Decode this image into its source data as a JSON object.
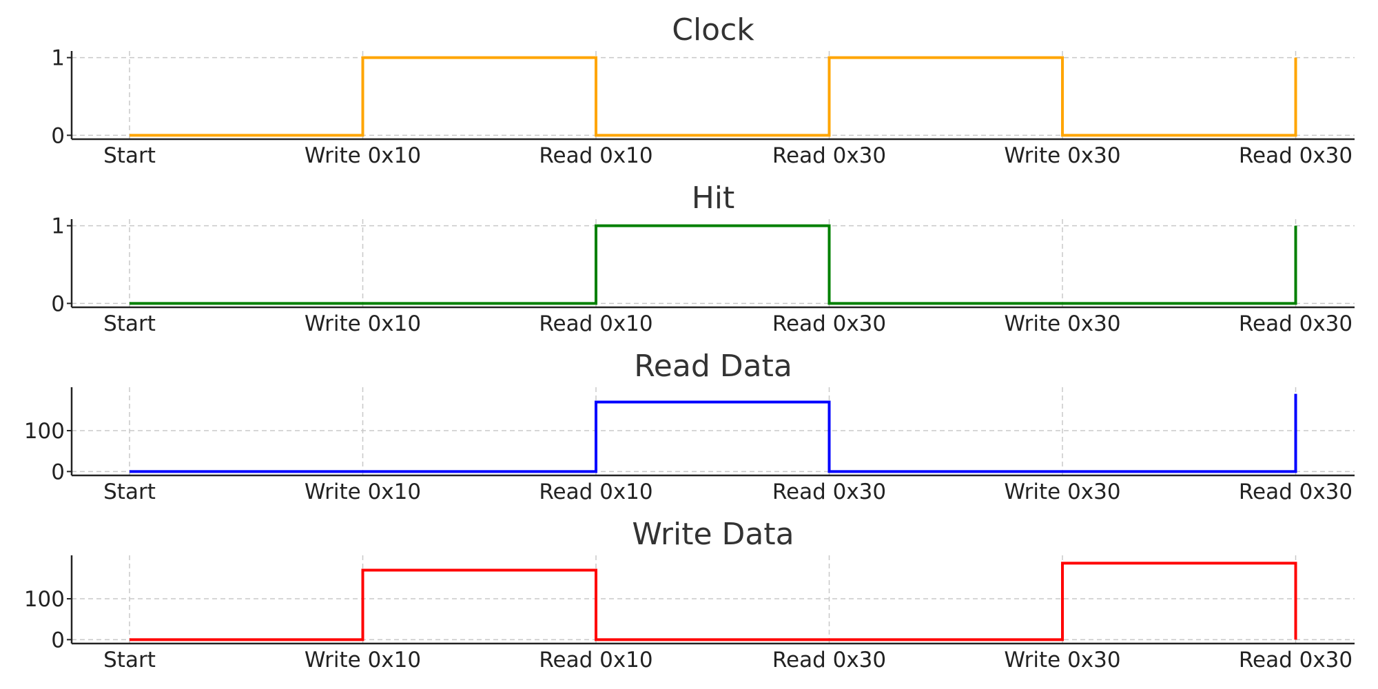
{
  "chart_data": [
    {
      "type": "line",
      "step": "post",
      "title": "Clock",
      "categories": [
        "Start",
        "Write 0x10",
        "Read 0x10",
        "Read 0x30",
        "Write 0x30",
        "Read 0x30"
      ],
      "values": [
        0,
        1,
        0,
        1,
        0,
        1
      ],
      "color": "#FFA500",
      "yticks": [
        0,
        1
      ],
      "ylim": [
        -0.05,
        1.05
      ],
      "grid": true
    },
    {
      "type": "line",
      "step": "post",
      "title": "Hit",
      "categories": [
        "Start",
        "Write 0x10",
        "Read 0x10",
        "Read 0x30",
        "Write 0x30",
        "Read 0x30"
      ],
      "values": [
        0,
        0,
        1,
        0,
        0,
        1
      ],
      "color": "#008000",
      "yticks": [
        0,
        1
      ],
      "ylim": [
        -0.05,
        1.05
      ],
      "grid": true
    },
    {
      "type": "line",
      "step": "post",
      "title": "Read Data",
      "categories": [
        "Start",
        "Write 0x10",
        "Read 0x10",
        "Read 0x30",
        "Write 0x30",
        "Read 0x30"
      ],
      "values": [
        0,
        0,
        170,
        0,
        0,
        190
      ],
      "color": "#0000FF",
      "yticks": [
        0,
        100
      ],
      "ylim": [
        -9.5,
        199.5
      ],
      "grid": true
    },
    {
      "type": "line",
      "step": "post",
      "title": "Write Data",
      "categories": [
        "Start",
        "Write 0x10",
        "Read 0x10",
        "Read 0x30",
        "Write 0x30",
        "Read 0x30"
      ],
      "values": [
        0,
        170,
        0,
        0,
        187,
        0
      ],
      "color": "#FF0000",
      "yticks": [
        0,
        100
      ],
      "ylim": [
        -9.5,
        199.5
      ],
      "grid": true
    }
  ]
}
